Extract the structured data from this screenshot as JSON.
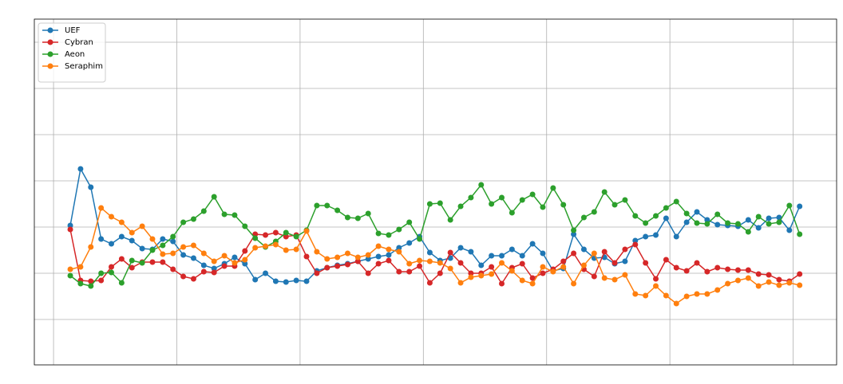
{
  "chart_data": {
    "type": "line",
    "x": [
      0,
      1,
      2,
      3,
      4,
      5,
      6,
      7,
      8,
      9,
      10,
      11,
      12,
      13,
      14,
      15,
      16,
      17,
      18,
      19,
      20,
      21,
      22,
      23,
      24,
      25,
      26,
      27,
      28,
      29,
      30,
      31,
      32,
      33,
      34,
      35,
      36,
      37,
      38,
      39,
      40,
      41,
      42,
      43,
      44,
      45,
      46,
      47,
      48,
      49,
      50,
      51,
      52,
      53,
      54,
      55,
      56,
      57,
      58,
      59,
      60,
      61,
      62,
      63,
      64,
      65,
      66,
      67,
      68,
      69,
      70,
      71
    ],
    "series": [
      {
        "name": "UEF",
        "color": "#1f77b4",
        "values": [
          175,
          246,
          223,
          158,
          152,
          161,
          156,
          146,
          145,
          158,
          155,
          138,
          134,
          125,
          121,
          127,
          135,
          127,
          107,
          115,
          105,
          104,
          106,
          105,
          118,
          122,
          125,
          127,
          130,
          133,
          136,
          138,
          147,
          153,
          161,
          141,
          131,
          134,
          147,
          142,
          125,
          137,
          137,
          145,
          137,
          152,
          140,
          118,
          121,
          164,
          145,
          134,
          135,
          127,
          130,
          156,
          161,
          163,
          184,
          161,
          179,
          192,
          182,
          176,
          175,
          174,
          182,
          172,
          184,
          185,
          169,
          199
        ]
      },
      {
        "name": "Cybran",
        "color": "#d62728",
        "values": [
          170,
          106,
          105,
          106,
          123,
          133,
          122,
          129,
          129,
          129,
          120,
          111,
          108,
          117,
          116,
          124,
          124,
          143,
          164,
          163,
          166,
          161,
          163,
          136,
          115,
          122,
          124,
          126,
          130,
          115,
          127,
          131,
          117,
          117,
          124,
          103,
          115,
          141,
          128,
          115,
          115,
          123,
          102,
          122,
          127,
          109,
          115,
          120,
          130,
          140,
          120,
          111,
          142,
          128,
          145,
          151,
          128,
          108,
          132,
          122,
          118,
          128,
          117,
          122,
          120,
          119,
          119,
          114,
          113,
          107,
          105,
          114
        ]
      },
      {
        "name": "Aeon",
        "color": "#2ca02c",
        "values": [
          112,
          102,
          99,
          115,
          116,
          103,
          131,
          128,
          144,
          150,
          161,
          179,
          183,
          193,
          211,
          189,
          188,
          174,
          159,
          148,
          155,
          166,
          161,
          169,
          200,
          200,
          194,
          185,
          184,
          190,
          165,
          163,
          170,
          179,
          158,
          202,
          203,
          182,
          199,
          210,
          226,
          202,
          210,
          191,
          207,
          214,
          198,
          222,
          201,
          169,
          185,
          192,
          217,
          201,
          207,
          187,
          178,
          187,
          197,
          205,
          190,
          178,
          177,
          189,
          178,
          177,
          167,
          186,
          177,
          179,
          200,
          164
        ]
      },
      {
        "name": "Seraphim",
        "color": "#ff7f0e",
        "values": [
          120,
          123,
          148,
          197,
          186,
          179,
          166,
          174,
          158,
          139,
          140,
          148,
          150,
          140,
          130,
          137,
          128,
          132,
          147,
          149,
          151,
          144,
          145,
          168,
          142,
          133,
          135,
          140,
          135,
          138,
          149,
          145,
          142,
          127,
          131,
          130,
          128,
          121,
          103,
          110,
          112,
          114,
          128,
          118,
          106,
          102,
          123,
          117,
          123,
          102,
          125,
          140,
          109,
          107,
          113,
          89,
          87,
          99,
          87,
          77,
          86,
          89,
          89,
          94,
          102,
          106,
          109,
          99,
          104,
          100,
          103,
          100
        ]
      }
    ],
    "xlim": [
      -3.5,
      74.6
    ],
    "xticks": [
      -1.63,
      10.37,
      22.37,
      34.37,
      46.37,
      58.37,
      70.37
    ],
    "ylim": [
      0,
      434
    ],
    "yticks": [
      57,
      115,
      173,
      231,
      289,
      347,
      405
    ],
    "grid": true,
    "legend": "upper left"
  }
}
